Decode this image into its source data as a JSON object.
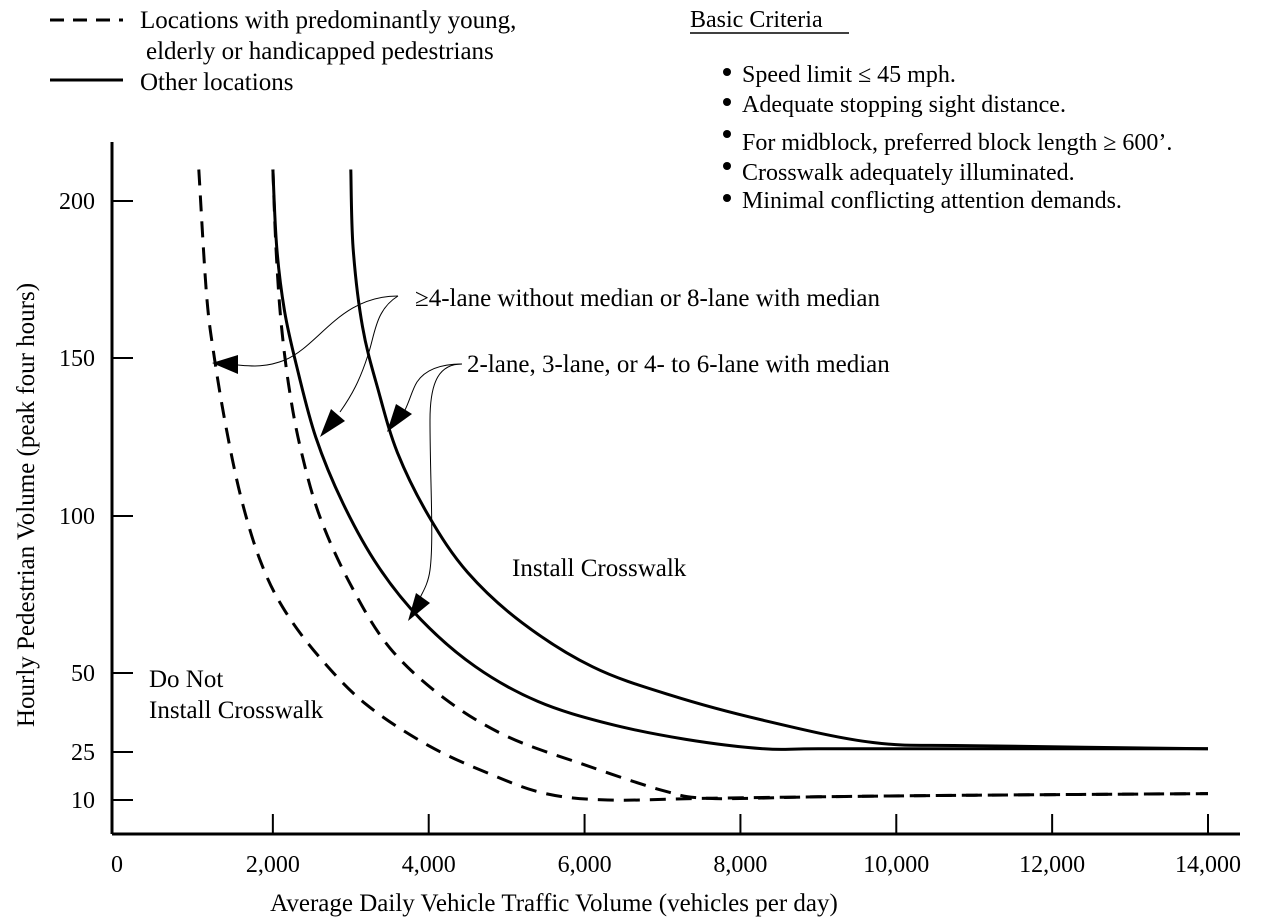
{
  "chart_data": {
    "type": "line",
    "title": "",
    "xlabel": "Average Daily Vehicle Traffic Volume (vehicles per day)",
    "ylabel": "Hourly Pedestrian Volume (peak four hours)",
    "xlim": [
      0,
      14000
    ],
    "ylim": [
      0,
      220
    ],
    "x_ticks": [
      0,
      2000,
      4000,
      6000,
      8000,
      10000,
      12000,
      14000
    ],
    "x_tick_labels": [
      "0",
      "2,000",
      "4,000",
      "6,000",
      "8,000",
      "10,000",
      "12,000",
      "14,000"
    ],
    "y_ticks": [
      10,
      25,
      50,
      100,
      150,
      200
    ],
    "y_tick_labels": [
      "10",
      "25",
      "50",
      "100",
      "150",
      "200"
    ],
    "grid": false,
    "legend": {
      "placement": "top-left",
      "entries": [
        {
          "style": "dashed",
          "label_lines": [
            "Locations with predominantly young,",
            "elderly or handicapped pedestrians"
          ]
        },
        {
          "style": "solid",
          "label_lines": [
            "Other locations"
          ]
        }
      ]
    },
    "criteria": {
      "heading": "Basic Criteria",
      "items": [
        "Speed limit ≤ 45 mph.",
        "Adequate stopping sight distance.",
        "For midblock, preferred block length ≥ 600’.",
        "Crosswalk adequately illuminated.",
        "Minimal conflicting attention demands."
      ]
    },
    "annotations": {
      "wide_road": "≥4-lane without median or 8-lane with median",
      "narrow_road": "2-lane, 3-lane, or 4- to 6-lane with median"
    },
    "regions": {
      "install": "Install Crosswalk",
      "do_not_line1": "Do Not",
      "do_not_line2": "Install Crosswalk"
    },
    "series": [
      {
        "style": "dashed",
        "group": "wide",
        "points": [
          [
            1050,
            210
          ],
          [
            1150,
            170
          ],
          [
            1250,
            150
          ],
          [
            1400,
            128
          ],
          [
            1600,
            105
          ],
          [
            1850,
            85
          ],
          [
            2150,
            70
          ],
          [
            2600,
            55
          ],
          [
            3200,
            40
          ],
          [
            4000,
            27
          ],
          [
            4800,
            18
          ],
          [
            5500,
            12
          ],
          [
            6300,
            10
          ],
          [
            7500,
            10.5
          ],
          [
            9000,
            11
          ],
          [
            11000,
            11.5
          ],
          [
            14000,
            12
          ]
        ]
      },
      {
        "style": "dashed",
        "group": "narrow",
        "points": [
          [
            2000,
            210
          ],
          [
            2040,
            185
          ],
          [
            2100,
            163
          ],
          [
            2200,
            142
          ],
          [
            2350,
            122
          ],
          [
            2600,
            100
          ],
          [
            3000,
            78
          ],
          [
            3500,
            58
          ],
          [
            4200,
            42
          ],
          [
            5000,
            30
          ],
          [
            6000,
            21
          ],
          [
            7000,
            13
          ],
          [
            7600,
            10.5
          ],
          [
            9000,
            11
          ],
          [
            11000,
            11.5
          ],
          [
            14000,
            12
          ]
        ]
      },
      {
        "style": "solid",
        "group": "wide",
        "points": [
          [
            2000,
            210
          ],
          [
            2050,
            185
          ],
          [
            2150,
            165
          ],
          [
            2300,
            148
          ],
          [
            2550,
            125
          ],
          [
            2900,
            104
          ],
          [
            3350,
            84
          ],
          [
            3900,
            67
          ],
          [
            4600,
            52
          ],
          [
            5400,
            41
          ],
          [
            6300,
            34
          ],
          [
            7300,
            29
          ],
          [
            8300,
            26
          ],
          [
            9000,
            26
          ],
          [
            11000,
            26
          ],
          [
            14000,
            26
          ]
        ]
      },
      {
        "style": "solid",
        "group": "narrow",
        "points": [
          [
            3000,
            210
          ],
          [
            3030,
            185
          ],
          [
            3150,
            160
          ],
          [
            3350,
            140
          ],
          [
            3600,
            120
          ],
          [
            4000,
            100
          ],
          [
            4500,
            82
          ],
          [
            5200,
            66
          ],
          [
            6100,
            52
          ],
          [
            7100,
            43
          ],
          [
            8300,
            35
          ],
          [
            9700,
            28
          ],
          [
            11000,
            27
          ],
          [
            14000,
            26
          ]
        ]
      }
    ]
  }
}
